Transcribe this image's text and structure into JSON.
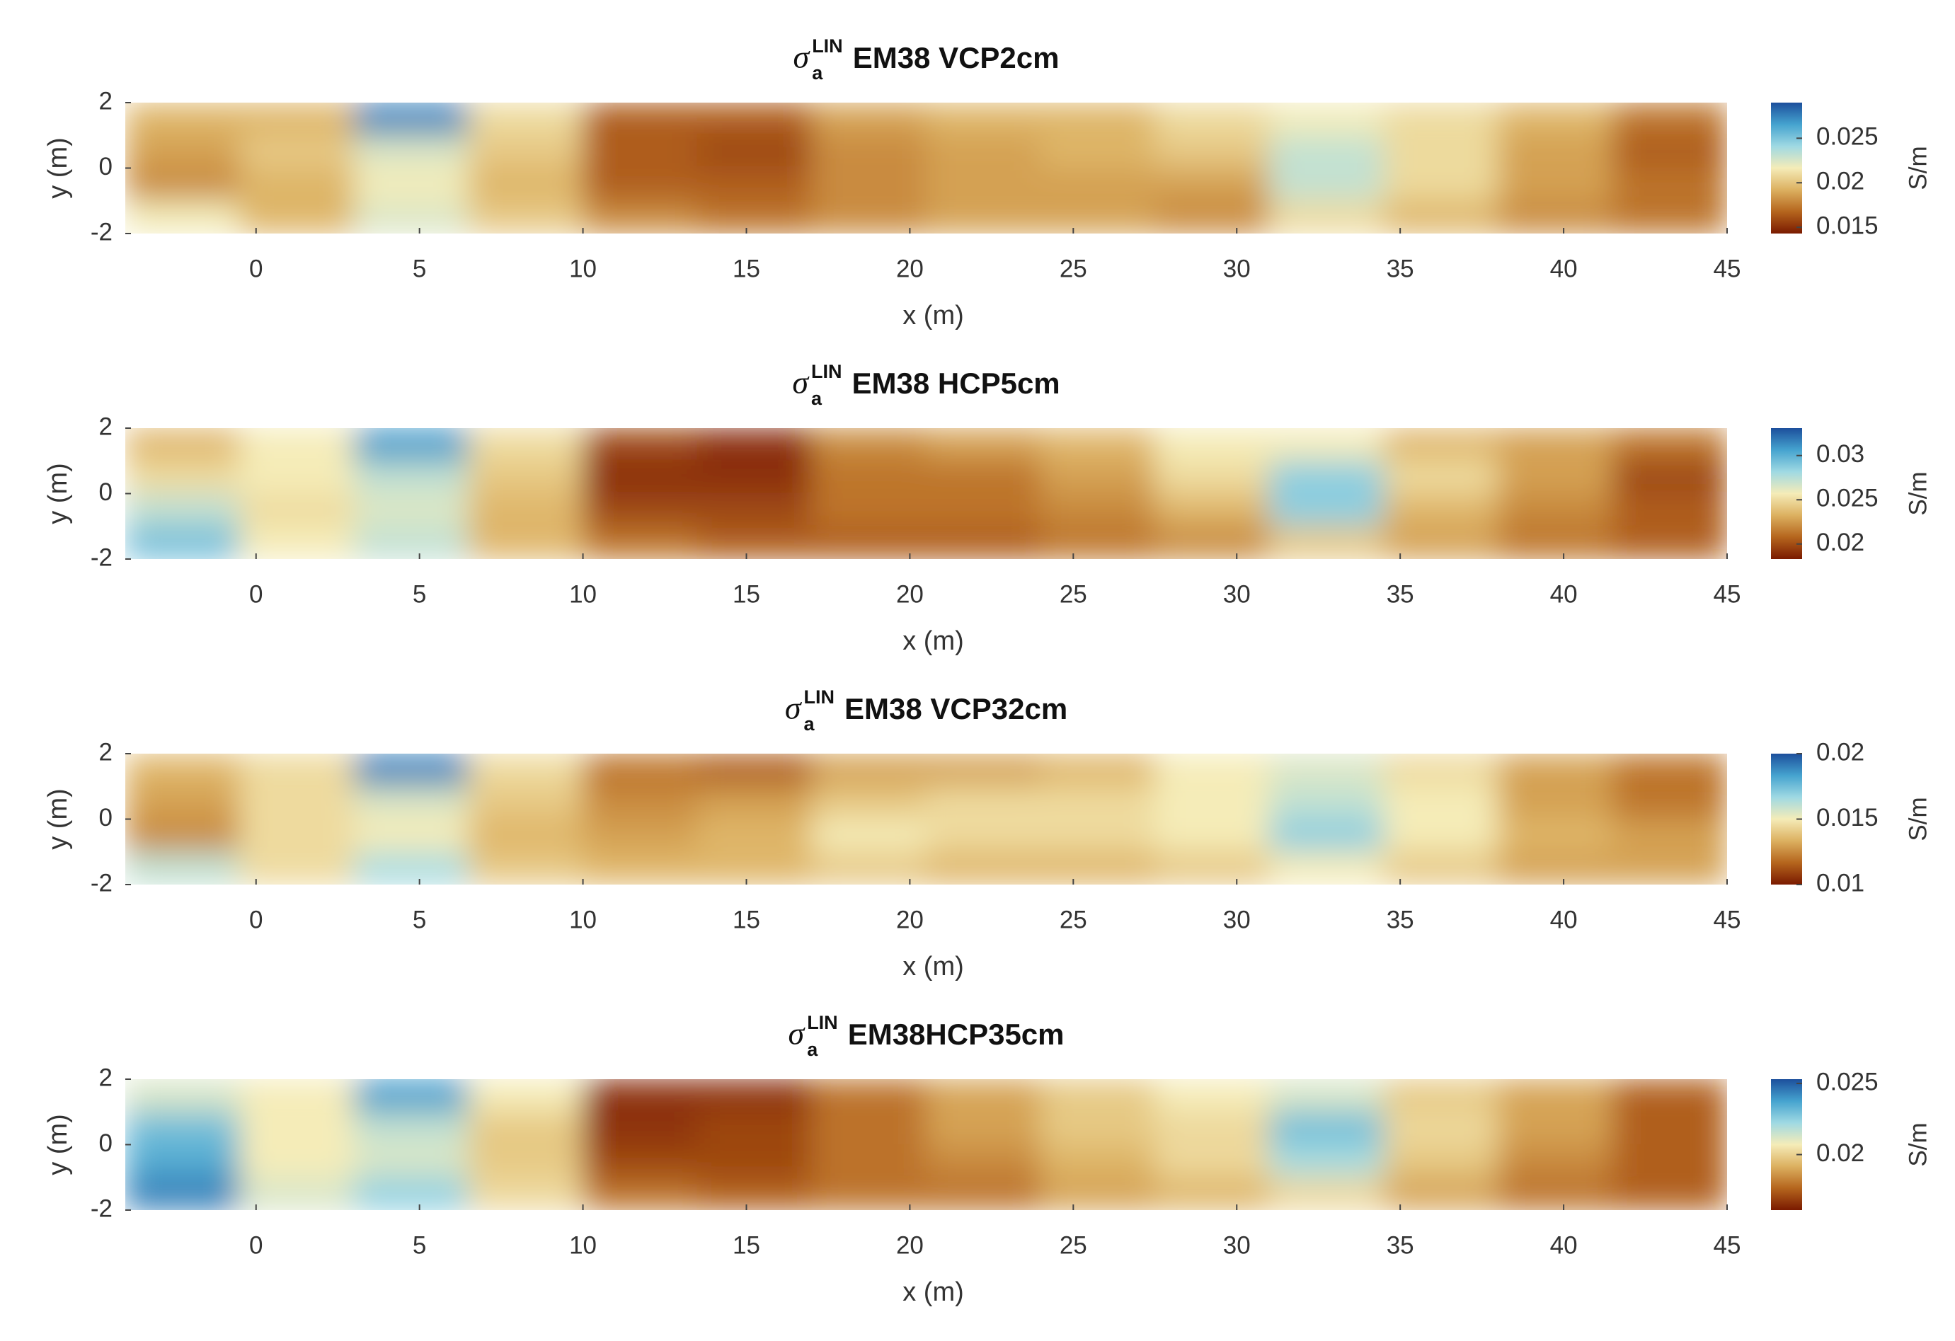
{
  "chart_data": [
    {
      "type": "heatmap",
      "title_symbol": "σ",
      "title_sub": "a",
      "title_sup": "LIN",
      "title": "EM38 VCP2cm",
      "xlabel": "x (m)",
      "ylabel": "y (m)",
      "colorbar_label": "S/m",
      "xlim": [
        -4,
        45
      ],
      "ylim": [
        -2,
        2
      ],
      "xticks": [
        0,
        5,
        10,
        15,
        20,
        25,
        30,
        35,
        40,
        45
      ],
      "yticks": [
        -2,
        0,
        2
      ],
      "clim": [
        0.0143,
        0.029
      ],
      "cticks": [
        0.015,
        0.02,
        0.025
      ],
      "colormap": [
        "#7a1a00",
        "#b5651d",
        "#dcb060",
        "#f5ecb8",
        "#9fd9e3",
        "#45a3cf",
        "#1c4f9c"
      ],
      "z": [
        [
          0.0194,
          0.0194,
          0.0275,
          0.0209,
          0.0165,
          0.0165,
          0.0187,
          0.0194,
          0.0194,
          0.0209,
          0.0217,
          0.0209,
          0.0194,
          0.0172
        ],
        [
          0.0187,
          0.0202,
          0.0224,
          0.0202,
          0.0165,
          0.0158,
          0.018,
          0.0187,
          0.0194,
          0.0202,
          0.0231,
          0.0209,
          0.0187,
          0.0165
        ],
        [
          0.018,
          0.0194,
          0.0217,
          0.0194,
          0.0165,
          0.0165,
          0.018,
          0.0187,
          0.0187,
          0.0187,
          0.0231,
          0.0209,
          0.0187,
          0.0172
        ],
        [
          0.0217,
          0.0194,
          0.0224,
          0.0202,
          0.018,
          0.0172,
          0.018,
          0.0187,
          0.0187,
          0.018,
          0.0209,
          0.0194,
          0.018,
          0.0172
        ]
      ]
    },
    {
      "type": "heatmap",
      "title_symbol": "σ",
      "title_sub": "a",
      "title_sup": "LIN",
      "title": "EM38 HCP5cm",
      "xlabel": "x (m)",
      "ylabel": "y (m)",
      "colorbar_label": "S/m",
      "xlim": [
        -4,
        45
      ],
      "ylim": [
        -2,
        2
      ],
      "xticks": [
        0,
        5,
        10,
        15,
        20,
        25,
        30,
        35,
        40,
        45
      ],
      "yticks": [
        -2,
        0,
        2
      ],
      "clim": [
        0.0183,
        0.0331
      ],
      "cticks": [
        0.02,
        0.025,
        0.03
      ],
      "colormap": [
        "#7a1a00",
        "#b5651d",
        "#dcb060",
        "#f5ecb8",
        "#9fd9e3",
        "#45a3cf",
        "#1c4f9c"
      ],
      "z": [
        [
          0.0235,
          0.0257,
          0.0309,
          0.025,
          0.0198,
          0.019,
          0.022,
          0.0227,
          0.0235,
          0.0257,
          0.0257,
          0.0235,
          0.0227,
          0.0213
        ],
        [
          0.025,
          0.0257,
          0.0272,
          0.0242,
          0.019,
          0.019,
          0.0213,
          0.0213,
          0.0227,
          0.025,
          0.0287,
          0.025,
          0.0227,
          0.0198
        ],
        [
          0.0272,
          0.025,
          0.0264,
          0.0235,
          0.0198,
          0.0198,
          0.0213,
          0.0213,
          0.022,
          0.0235,
          0.0287,
          0.0235,
          0.022,
          0.0205
        ],
        [
          0.0294,
          0.0257,
          0.0272,
          0.0235,
          0.0213,
          0.0205,
          0.0205,
          0.0205,
          0.0213,
          0.022,
          0.0242,
          0.0227,
          0.0213,
          0.0205
        ]
      ]
    },
    {
      "type": "heatmap",
      "title_symbol": "σ",
      "title_sub": "a",
      "title_sup": "LIN",
      "title": "EM38 VCP32cm",
      "xlabel": "x (m)",
      "ylabel": "y (m)",
      "colorbar_label": "S/m",
      "xlim": [
        -4,
        45
      ],
      "ylim": [
        -2,
        2
      ],
      "xticks": [
        0,
        5,
        10,
        15,
        20,
        25,
        30,
        35,
        40,
        45
      ],
      "yticks": [
        -2,
        0,
        2
      ],
      "clim": [
        0.01,
        0.02
      ],
      "cticks": [
        0.01,
        0.015,
        0.02
      ],
      "colormap": [
        "#7a1a00",
        "#b5651d",
        "#dcb060",
        "#f5ecb8",
        "#9fd9e3",
        "#45a3cf",
        "#1c4f9c"
      ],
      "z": [
        [
          0.0135,
          0.0145,
          0.019,
          0.0145,
          0.012,
          0.0115,
          0.013,
          0.013,
          0.0135,
          0.015,
          0.0155,
          0.0145,
          0.013,
          0.012
        ],
        [
          0.013,
          0.0145,
          0.0155,
          0.014,
          0.0125,
          0.013,
          0.014,
          0.0145,
          0.0145,
          0.015,
          0.016,
          0.015,
          0.013,
          0.012
        ],
        [
          0.0125,
          0.0145,
          0.015,
          0.0135,
          0.013,
          0.0135,
          0.015,
          0.0145,
          0.0145,
          0.015,
          0.017,
          0.015,
          0.0135,
          0.013
        ],
        [
          0.016,
          0.0145,
          0.0165,
          0.014,
          0.0135,
          0.0135,
          0.014,
          0.0135,
          0.0135,
          0.014,
          0.015,
          0.014,
          0.013,
          0.013
        ]
      ]
    },
    {
      "type": "heatmap",
      "title_symbol": "σ",
      "title_sub": "a",
      "title_sup": "LIN",
      "title": "EM38HCP35cm",
      "xlabel": "x (m)",
      "ylabel": "y (m)",
      "colorbar_label": "S/m",
      "xlim": [
        -4,
        45
      ],
      "ylim": [
        -2,
        2
      ],
      "xticks": [
        0,
        5,
        10,
        15,
        20,
        25,
        30,
        35,
        40,
        45
      ],
      "yticks": [
        -2,
        0,
        2
      ],
      "clim": [
        0.0161,
        0.0253
      ],
      "cticks": [
        0.02,
        0.025
      ],
      "colormap": [
        "#7a1a00",
        "#b5651d",
        "#dcb060",
        "#f5ecb8",
        "#9fd9e3",
        "#45a3cf",
        "#1c4f9c"
      ],
      "z": [
        [
          0.0212,
          0.0207,
          0.0239,
          0.0207,
          0.0166,
          0.0166,
          0.0179,
          0.0189,
          0.0198,
          0.0207,
          0.0212,
          0.0198,
          0.0189,
          0.0175
        ],
        [
          0.023,
          0.0207,
          0.0216,
          0.0198,
          0.0166,
          0.017,
          0.0179,
          0.0189,
          0.0198,
          0.0202,
          0.023,
          0.0202,
          0.0189,
          0.0175
        ],
        [
          0.0235,
          0.0207,
          0.0212,
          0.0198,
          0.017,
          0.017,
          0.0179,
          0.0184,
          0.0193,
          0.0202,
          0.0221,
          0.0198,
          0.0184,
          0.0175
        ],
        [
          0.0244,
          0.0212,
          0.0225,
          0.0202,
          0.0179,
          0.0175,
          0.0179,
          0.0179,
          0.0189,
          0.0193,
          0.0202,
          0.0189,
          0.0179,
          0.0175
        ]
      ]
    }
  ]
}
